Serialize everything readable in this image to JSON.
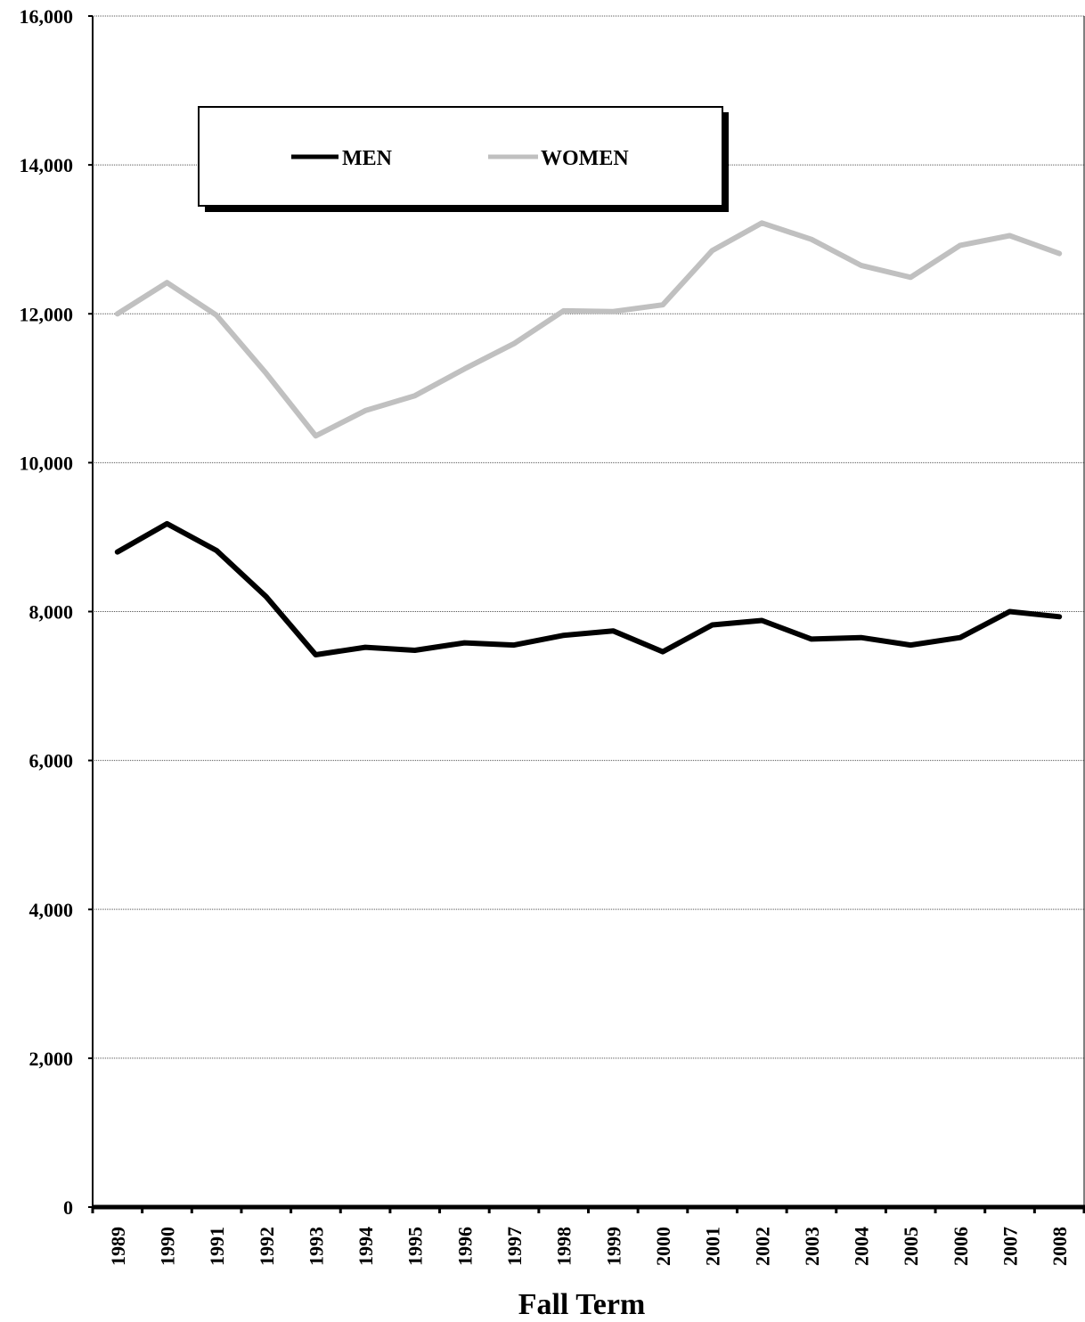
{
  "chart_data": {
    "type": "line",
    "title": "",
    "xlabel": "Fall Term",
    "ylabel": "",
    "x": [
      "1989",
      "1990",
      "1991",
      "1992",
      "1993",
      "1994",
      "1995",
      "1996",
      "1997",
      "1998",
      "1999",
      "2000",
      "2001",
      "2002",
      "2003",
      "2004",
      "2005",
      "2006",
      "2007",
      "2008"
    ],
    "y_ticks": [
      "0",
      "2,000",
      "4,000",
      "6,000",
      "8,000",
      "10,000",
      "12,000",
      "14,000",
      "16,000"
    ],
    "ylim": [
      0,
      16000
    ],
    "grid": true,
    "legend_position": "top-left",
    "series": [
      {
        "name": "MEN",
        "color": "#000000",
        "values": [
          8800,
          9180,
          8820,
          8200,
          7420,
          7520,
          7480,
          7580,
          7550,
          7680,
          7740,
          7460,
          7820,
          7880,
          7630,
          7650,
          7550,
          7650,
          8000,
          7930
        ]
      },
      {
        "name": "WOMEN",
        "color": "#c0c0c0",
        "values": [
          12000,
          12420,
          11980,
          11200,
          10360,
          10700,
          10900,
          11260,
          11600,
          12040,
          12030,
          12120,
          12850,
          13220,
          13000,
          12650,
          12490,
          12920,
          13050,
          12810
        ]
      }
    ]
  }
}
